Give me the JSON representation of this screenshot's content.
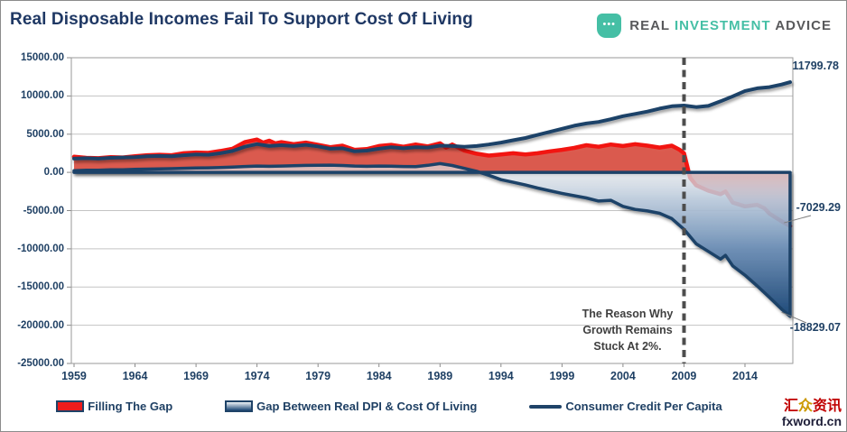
{
  "header": {
    "title": "Real Disposable Incomes Fail To Support Cost Of Living",
    "logo": {
      "dots": "•••",
      "word1": "REAL",
      "word2": "INVESTMENT",
      "word3": "ADVICE"
    }
  },
  "chart_data": {
    "type": "area",
    "title": "Real Disposable Incomes Fail To Support Cost Of Living",
    "x_domain": [
      1958.78,
      2017.92
    ],
    "y_domain": [
      -25000,
      15000
    ],
    "x_ticks": [
      1959,
      1964,
      1969,
      1974,
      1979,
      1984,
      1989,
      1994,
      1999,
      2004,
      2009,
      2014
    ],
    "y_ticks": [
      {
        "value": 15000,
        "label": "15000.00"
      },
      {
        "value": 10000,
        "label": "10000.00"
      },
      {
        "value": 5000,
        "label": "5000.00"
      },
      {
        "value": 0,
        "label": "0.00"
      },
      {
        "value": -5000,
        "label": "-5000.00"
      },
      {
        "value": -10000,
        "label": "-10000.00"
      },
      {
        "value": -15000,
        "label": "-15000.00"
      },
      {
        "value": -20000,
        "label": "-20000.00"
      },
      {
        "value": -25000,
        "label": "-25000.00"
      }
    ],
    "event_line": {
      "x": 2009,
      "style": "dashed",
      "color": "#4d4d4d"
    },
    "colors": {
      "red_line": "#f21511",
      "red_fill": "#db564b",
      "navy": "#1f4368",
      "grid": "#c3c3c3",
      "border": "#9a9a9a",
      "blue_grad_top": "rgba(255,255,255,0.5)",
      "blue_grad_bottom": "#1b4675"
    },
    "series": [
      {
        "name": "Filling The Gap",
        "type": "area",
        "points": [
          [
            1959,
            2050
          ],
          [
            1960,
            1900
          ],
          [
            1961,
            1850
          ],
          [
            1962,
            2000
          ],
          [
            1963,
            1950
          ],
          [
            1964,
            2100
          ],
          [
            1965,
            2250
          ],
          [
            1966,
            2300
          ],
          [
            1967,
            2250
          ],
          [
            1968,
            2500
          ],
          [
            1969,
            2600
          ],
          [
            1970,
            2550
          ],
          [
            1971,
            2800
          ],
          [
            1972,
            3100
          ],
          [
            1973,
            3950
          ],
          [
            1974,
            4300
          ],
          [
            1974.5,
            3900
          ],
          [
            1975,
            4150
          ],
          [
            1975.5,
            3800
          ],
          [
            1976,
            3950
          ],
          [
            1977,
            3700
          ],
          [
            1978,
            3900
          ],
          [
            1979,
            3600
          ],
          [
            1980,
            3300
          ],
          [
            1981,
            3500
          ],
          [
            1982,
            2950
          ],
          [
            1983,
            3050
          ],
          [
            1984,
            3450
          ],
          [
            1985,
            3600
          ],
          [
            1986,
            3350
          ],
          [
            1987,
            3650
          ],
          [
            1988,
            3400
          ],
          [
            1989,
            3800
          ],
          [
            1989.5,
            3250
          ],
          [
            1990,
            3650
          ],
          [
            1991,
            2850
          ],
          [
            1992,
            2450
          ],
          [
            1993,
            2200
          ],
          [
            1994,
            2350
          ],
          [
            1995,
            2500
          ],
          [
            1996,
            2350
          ],
          [
            1997,
            2500
          ],
          [
            1998,
            2750
          ],
          [
            1999,
            2950
          ],
          [
            2000,
            3200
          ],
          [
            2001,
            3550
          ],
          [
            2002,
            3350
          ],
          [
            2003,
            3650
          ],
          [
            2004,
            3450
          ],
          [
            2005,
            3700
          ],
          [
            2006,
            3500
          ],
          [
            2007,
            3250
          ],
          [
            2008,
            3500
          ],
          [
            2008.6,
            3000
          ],
          [
            2009,
            2500
          ],
          [
            2009.5,
            -700
          ],
          [
            2010,
            -1700
          ],
          [
            2011,
            -2400
          ],
          [
            2012,
            -2850
          ],
          [
            2012.4,
            -2500
          ],
          [
            2013,
            -3950
          ],
          [
            2014,
            -4450
          ],
          [
            2015,
            -4250
          ],
          [
            2015.6,
            -4700
          ],
          [
            2016,
            -5400
          ],
          [
            2017,
            -6400
          ],
          [
            2017.7,
            -7029.29
          ]
        ]
      },
      {
        "name": "Gap Between Real DPI & Cost Of Living",
        "type": "area",
        "points": [
          [
            1959,
            230
          ],
          [
            1960,
            270
          ],
          [
            1961,
            290
          ],
          [
            1962,
            330
          ],
          [
            1963,
            350
          ],
          [
            1964,
            390
          ],
          [
            1965,
            430
          ],
          [
            1966,
            460
          ],
          [
            1967,
            490
          ],
          [
            1968,
            530
          ],
          [
            1969,
            570
          ],
          [
            1970,
            590
          ],
          [
            1971,
            630
          ],
          [
            1972,
            690
          ],
          [
            1973,
            770
          ],
          [
            1974,
            830
          ],
          [
            1975,
            790
          ],
          [
            1976,
            830
          ],
          [
            1977,
            870
          ],
          [
            1978,
            910
          ],
          [
            1979,
            930
          ],
          [
            1980,
            950
          ],
          [
            1981,
            900
          ],
          [
            1982,
            830
          ],
          [
            1983,
            790
          ],
          [
            1984,
            830
          ],
          [
            1985,
            810
          ],
          [
            1986,
            770
          ],
          [
            1987,
            750
          ],
          [
            1988,
            920
          ],
          [
            1989,
            1150
          ],
          [
            1990,
            900
          ],
          [
            1991,
            520
          ],
          [
            1992,
            150
          ],
          [
            1993,
            -380
          ],
          [
            1994,
            -950
          ],
          [
            1995,
            -1300
          ],
          [
            1996,
            -1650
          ],
          [
            1997,
            -2050
          ],
          [
            1998,
            -2400
          ],
          [
            1999,
            -2750
          ],
          [
            2000,
            -3050
          ],
          [
            2001,
            -3350
          ],
          [
            2002,
            -3750
          ],
          [
            2003,
            -3650
          ],
          [
            2004,
            -4450
          ],
          [
            2005,
            -4850
          ],
          [
            2006,
            -5050
          ],
          [
            2007,
            -5350
          ],
          [
            2008,
            -6050
          ],
          [
            2009,
            -7450
          ],
          [
            2010,
            -9350
          ],
          [
            2011,
            -10350
          ],
          [
            2012,
            -11350
          ],
          [
            2012.4,
            -10850
          ],
          [
            2013,
            -12250
          ],
          [
            2014,
            -13450
          ],
          [
            2015,
            -14850
          ],
          [
            2016,
            -16350
          ],
          [
            2017,
            -17900
          ],
          [
            2017.7,
            -18829.07
          ]
        ]
      },
      {
        "name": "Consumer Credit Per Capita",
        "type": "line",
        "points": [
          [
            1959,
            1800
          ],
          [
            1960,
            1850
          ],
          [
            1961,
            1800
          ],
          [
            1962,
            1900
          ],
          [
            1963,
            1950
          ],
          [
            1964,
            2000
          ],
          [
            1965,
            2100
          ],
          [
            1966,
            2150
          ],
          [
            1967,
            2100
          ],
          [
            1968,
            2250
          ],
          [
            1969,
            2350
          ],
          [
            1970,
            2300
          ],
          [
            1971,
            2500
          ],
          [
            1972,
            2800
          ],
          [
            1973,
            3350
          ],
          [
            1974,
            3700
          ],
          [
            1975,
            3450
          ],
          [
            1976,
            3550
          ],
          [
            1977,
            3450
          ],
          [
            1978,
            3600
          ],
          [
            1979,
            3400
          ],
          [
            1980,
            3100
          ],
          [
            1981,
            3150
          ],
          [
            1982,
            2750
          ],
          [
            1983,
            2850
          ],
          [
            1984,
            3100
          ],
          [
            1985,
            3300
          ],
          [
            1986,
            3150
          ],
          [
            1987,
            3300
          ],
          [
            1988,
            3250
          ],
          [
            1989,
            3500
          ],
          [
            1990,
            3450
          ],
          [
            1991,
            3350
          ],
          [
            1992,
            3450
          ],
          [
            1993,
            3650
          ],
          [
            1994,
            3900
          ],
          [
            1995,
            4200
          ],
          [
            1996,
            4500
          ],
          [
            1997,
            4900
          ],
          [
            1998,
            5300
          ],
          [
            1999,
            5700
          ],
          [
            2000,
            6100
          ],
          [
            2001,
            6400
          ],
          [
            2002,
            6600
          ],
          [
            2003,
            6950
          ],
          [
            2004,
            7350
          ],
          [
            2005,
            7650
          ],
          [
            2006,
            7950
          ],
          [
            2007,
            8350
          ],
          [
            2008,
            8650
          ],
          [
            2009,
            8750
          ],
          [
            2010,
            8550
          ],
          [
            2011,
            8700
          ],
          [
            2012,
            9300
          ],
          [
            2013,
            9950
          ],
          [
            2014,
            10650
          ],
          [
            2015,
            11000
          ],
          [
            2016,
            11150
          ],
          [
            2017,
            11500
          ],
          [
            2017.7,
            11799.78
          ]
        ]
      }
    ],
    "annotations": {
      "credit_end": "11799.78",
      "red_end": "-7029.29",
      "gap_end": "-18829.07",
      "note_lines": [
        "The Reason Why",
        "Growth Remains",
        "Stuck At 2%."
      ]
    }
  },
  "legend": {
    "items": [
      {
        "label": "Filling The Gap",
        "swatch": "red-area"
      },
      {
        "label": "Gap Between Real DPI & Cost Of Living",
        "swatch": "blue-area"
      },
      {
        "label": "Consumer Credit Per Capita",
        "swatch": "line"
      }
    ]
  },
  "watermark": {
    "cn_part1": "汇",
    "cn_part2": "众",
    "cn_part3": "资讯",
    "site": "fxword.cn"
  }
}
